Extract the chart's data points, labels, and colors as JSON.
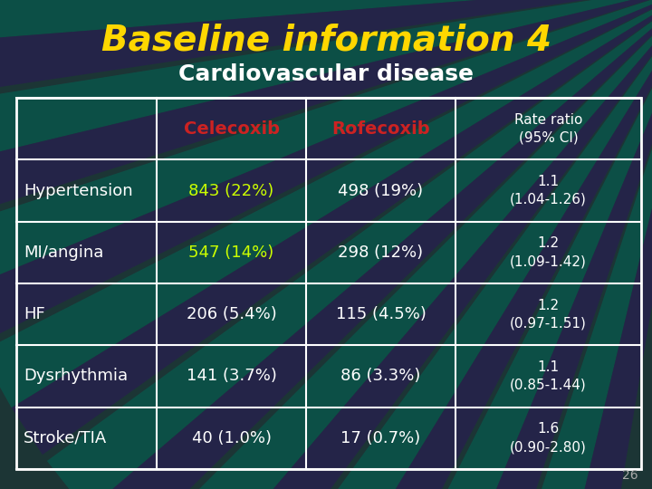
{
  "title": "Baseline information 4",
  "subtitle": "Cardiovascular disease",
  "title_color": "#FFD700",
  "subtitle_color": "#FFFFFF",
  "col_headers": [
    "Celecoxib",
    "Rofecoxib",
    "Rate ratio\n(95% CI)"
  ],
  "col_header_colors": [
    "#CC2222",
    "#CC2222",
    "#FFFFFF"
  ],
  "row_labels": [
    "Hypertension",
    "MI/angina",
    "HF",
    "Dysrhythmia",
    "Stroke/TIA"
  ],
  "celecoxib_values": [
    "843 (22%)",
    "547 (14%)",
    "206 (5.4%)",
    "141 (3.7%)",
    "40 (1.0%)"
  ],
  "rofecoxib_values": [
    "498 (19%)",
    "298 (12%)",
    "115 (4.5%)",
    "86 (3.3%)",
    "17 (0.7%)"
  ],
  "rate_ratios": [
    "1.1\n(1.04-1.26)",
    "1.2\n(1.09-1.42)",
    "1.2\n(0.97-1.51)",
    "1.1\n(0.85-1.44)",
    "1.6\n(0.90-2.80)"
  ],
  "celecoxib_highlighted": [
    true,
    true,
    false,
    false,
    false
  ],
  "celecoxib_normal_color": "#FFFFFF",
  "celecoxib_highlight_color": "#CCFF00",
  "rofecoxib_color": "#FFFFFF",
  "rate_ratio_color": "#FFFFFF",
  "row_label_color": "#FFFFFF",
  "slide_number": "26",
  "bg_base": "#1A3A3A",
  "ray_teal": "#006060",
  "ray_purple": "#3A2060"
}
